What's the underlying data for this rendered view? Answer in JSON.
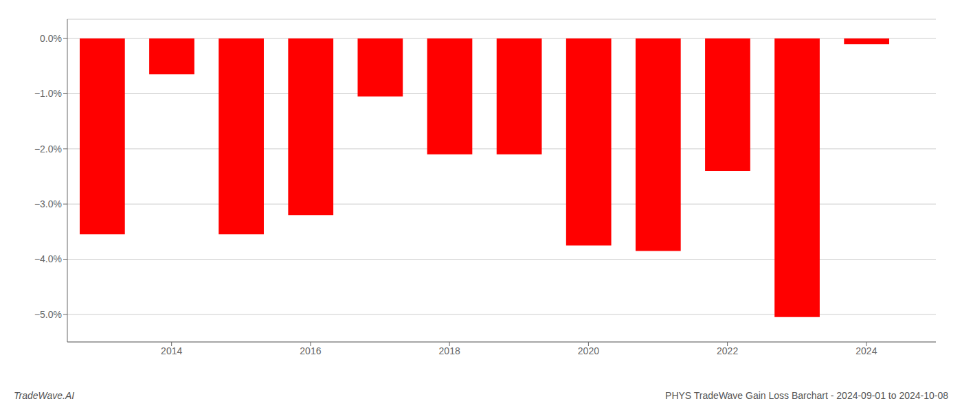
{
  "chart_data": {
    "type": "bar",
    "title": "PHYS TradeWave Gain Loss Barchart - 2024-09-01 to 2024-10-08",
    "annotations": [
      "TradeWave.AI"
    ],
    "x": [
      2013,
      2014,
      2015,
      2016,
      2017,
      2018,
      2019,
      2020,
      2021,
      2022,
      2023,
      2024
    ],
    "values": [
      -3.55,
      -0.65,
      -3.55,
      -3.2,
      -1.05,
      -2.1,
      -2.1,
      -3.75,
      -3.85,
      -2.4,
      -5.05,
      -0.1
    ],
    "color": "#ff0000",
    "xlim": [
      2012.5,
      2025.0
    ],
    "xticks": [
      2014,
      2016,
      2018,
      2020,
      2022,
      2024
    ],
    "ylim": [
      -5.5,
      0.35
    ],
    "yticks": [
      {
        "value": 0.0,
        "label": "0.0%"
      },
      {
        "value": -1.0,
        "label": "−1.0%"
      },
      {
        "value": -2.0,
        "label": "−2.0%"
      },
      {
        "value": -3.0,
        "label": "−3.0%"
      },
      {
        "value": -4.0,
        "label": "−4.0%"
      },
      {
        "value": -5.0,
        "label": "−5.0%"
      }
    ],
    "grid": true
  }
}
